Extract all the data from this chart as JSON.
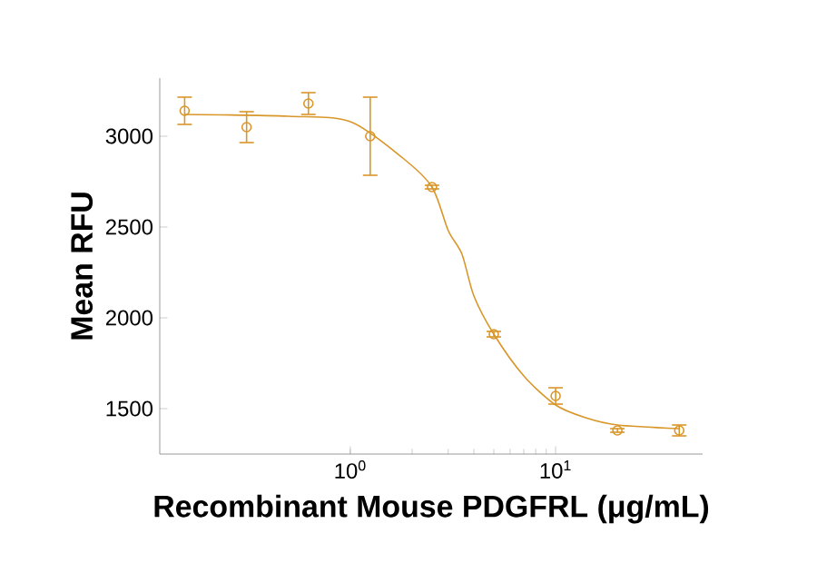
{
  "chart_data": {
    "type": "scatter",
    "xlabel": "Recombinant Mouse PDGFRL (μg/mL)",
    "ylabel": "Mean RFU",
    "log": "x",
    "marker": "circle",
    "xlim": [
      0.118,
      52
    ],
    "ylim": [
      1250,
      3320
    ],
    "xticks": [
      {
        "value": 1,
        "label": "10$^{0}$"
      },
      {
        "value": 10,
        "label": "10$^{1}$"
      }
    ],
    "yticks": [
      1500,
      2000,
      2500,
      3000
    ],
    "series": [
      {
        "color": "#d9962a",
        "x": [
          0.156,
          0.3125,
          0.625,
          1.25,
          2.5,
          5,
          10,
          20,
          40
        ],
        "values": [
          3140,
          3050,
          3180,
          3000,
          2720,
          1910,
          1570,
          1380,
          1380
        ],
        "errors": [
          75,
          85,
          60,
          215,
          10,
          15,
          45,
          10,
          30
        ]
      },
      {
        "type": "line",
        "color": "#d9962a",
        "marker": "none",
        "x": [
          0.156,
          0.5,
          1,
          1.8,
          2.5,
          3,
          3.5,
          4,
          5,
          7,
          10,
          14,
          20,
          40
        ],
        "values": [
          3120,
          3110,
          3080,
          2880,
          2720,
          2480,
          2350,
          2120,
          1910,
          1680,
          1520,
          1450,
          1410,
          1390
        ]
      }
    ]
  }
}
